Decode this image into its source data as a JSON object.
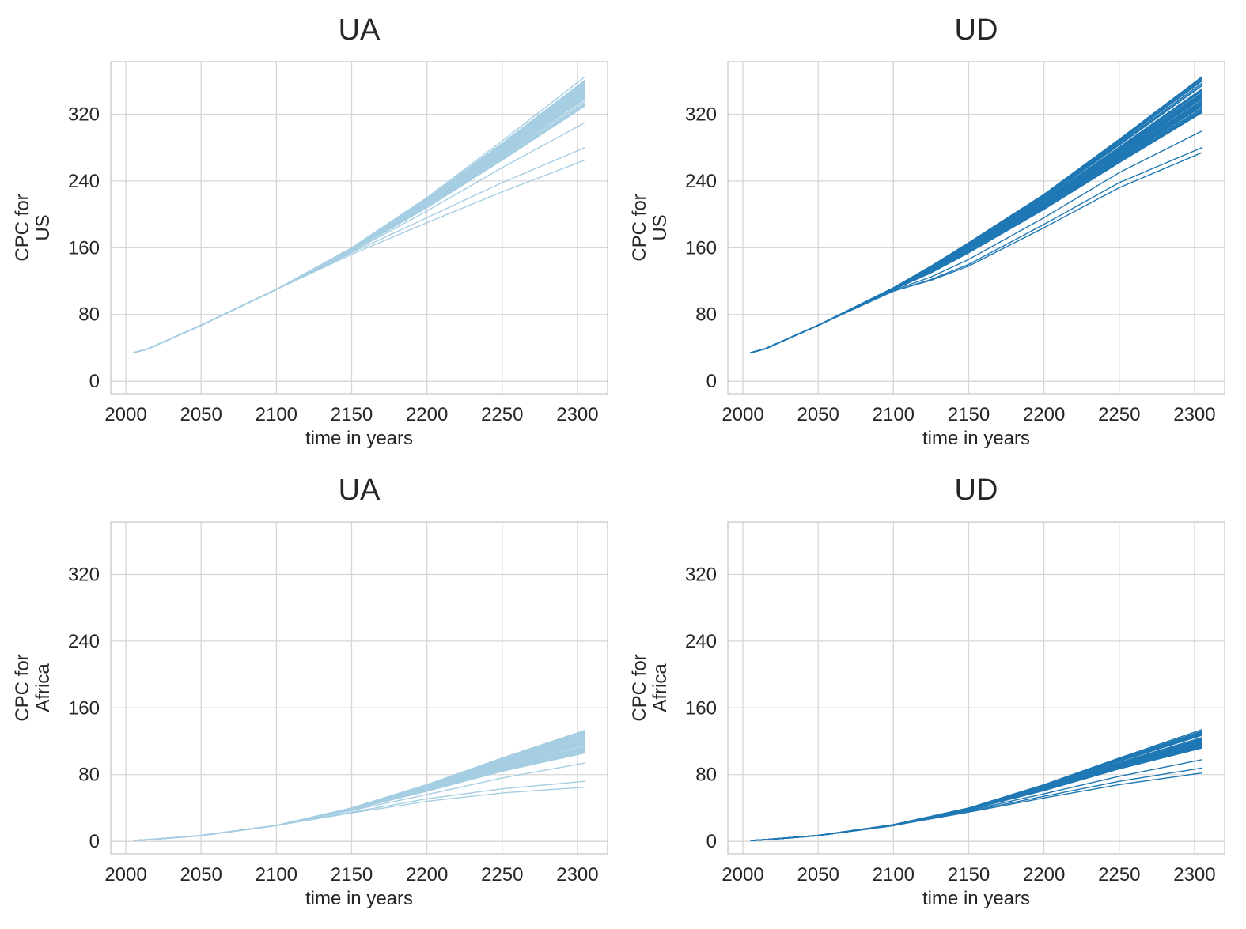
{
  "chart_data": [
    {
      "type": "line",
      "title": "UA",
      "xlabel": "time in years",
      "ylabel": [
        "CPC for",
        "US"
      ],
      "xlim": [
        1990,
        2320
      ],
      "ylim": [
        -15,
        383
      ],
      "xticks": [
        2000,
        2050,
        2100,
        2150,
        2200,
        2250,
        2300
      ],
      "yticks": [
        0,
        80,
        160,
        240,
        320
      ],
      "grid": true,
      "color": "#a6cee3",
      "series_count": 50,
      "x": [
        2005,
        2015,
        2050,
        2100,
        2150,
        2200,
        2250,
        2305
      ],
      "series": [
        {
          "values": [
            34,
            39,
            67,
            110,
            160,
            220,
            288,
            365
          ]
        },
        {
          "values": [
            34,
            39,
            67,
            110,
            158,
            214,
            276,
            346
          ]
        },
        {
          "values": [
            34,
            39,
            67,
            110,
            156,
            208,
            265,
            330
          ]
        },
        {
          "values": [
            34,
            39,
            67,
            110,
            155,
            204,
            256,
            310
          ]
        },
        {
          "values": [
            34,
            39,
            67,
            110,
            154,
            196,
            238,
            280
          ]
        },
        {
          "values": [
            34,
            39,
            67,
            110,
            152,
            190,
            227,
            265
          ]
        }
      ]
    },
    {
      "type": "line",
      "title": "UD",
      "xlabel": "time in years",
      "ylabel": [
        "CPC for",
        "US"
      ],
      "xlim": [
        1990,
        2320
      ],
      "ylim": [
        -15,
        383
      ],
      "xticks": [
        2000,
        2050,
        2100,
        2150,
        2200,
        2250,
        2300
      ],
      "yticks": [
        0,
        80,
        160,
        240,
        320
      ],
      "grid": true,
      "color": "#1f78b4",
      "series_count": 50,
      "x": [
        2005,
        2015,
        2050,
        2100,
        2125,
        2150,
        2200,
        2250,
        2305
      ],
      "series": [
        {
          "values": [
            34,
            39,
            67,
            112,
            138,
            166,
            224,
            290,
            365
          ]
        },
        {
          "values": [
            34,
            39,
            67,
            111,
            134,
            160,
            214,
            276,
            345
          ]
        },
        {
          "values": [
            34,
            39,
            67,
            110,
            130,
            154,
            206,
            262,
            322
          ]
        },
        {
          "values": [
            34,
            39,
            67,
            109,
            125,
            146,
            196,
            250,
            300
          ]
        },
        {
          "values": [
            34,
            39,
            67,
            108,
            122,
            140,
            188,
            238,
            280
          ]
        },
        {
          "values": [
            34,
            39,
            67,
            108,
            121,
            138,
            184,
            232,
            274
          ]
        }
      ]
    },
    {
      "type": "line",
      "title": "UA",
      "xlabel": "time in years",
      "ylabel": [
        "CPC for",
        "Africa"
      ],
      "xlim": [
        1990,
        2320
      ],
      "ylim": [
        -15,
        383
      ],
      "xticks": [
        2000,
        2050,
        2100,
        2150,
        2200,
        2250,
        2300
      ],
      "yticks": [
        0,
        80,
        160,
        240,
        320
      ],
      "grid": true,
      "color": "#a6cee3",
      "series_count": 50,
      "x": [
        2005,
        2015,
        2050,
        2100,
        2150,
        2200,
        2250,
        2305
      ],
      "series": [
        {
          "values": [
            1,
            2,
            7,
            19,
            40,
            68,
            100,
            133
          ]
        },
        {
          "values": [
            1,
            2,
            7,
            19,
            39,
            64,
            92,
            120
          ]
        },
        {
          "values": [
            1,
            2,
            7,
            19,
            38,
            60,
            84,
            106
          ]
        },
        {
          "values": [
            1,
            2,
            7,
            19,
            37,
            56,
            76,
            94
          ]
        },
        {
          "values": [
            1,
            2,
            7,
            19,
            35,
            51,
            63,
            72
          ]
        },
        {
          "values": [
            1,
            2,
            7,
            19,
            34,
            48,
            58,
            65
          ]
        }
      ]
    },
    {
      "type": "line",
      "title": "UD",
      "xlabel": "time in years",
      "ylabel": [
        "CPC for",
        "Africa"
      ],
      "xlim": [
        1990,
        2320
      ],
      "ylim": [
        -15,
        383
      ],
      "xticks": [
        2000,
        2050,
        2100,
        2150,
        2200,
        2250,
        2300
      ],
      "yticks": [
        0,
        80,
        160,
        240,
        320
      ],
      "grid": true,
      "color": "#1f78b4",
      "series_count": 50,
      "x": [
        2005,
        2015,
        2050,
        2100,
        2150,
        2200,
        2250,
        2305
      ],
      "series": [
        {
          "values": [
            1,
            2,
            7,
            20,
            40,
            68,
            100,
            134
          ]
        },
        {
          "values": [
            1,
            2,
            7,
            19,
            39,
            65,
            94,
            124
          ]
        },
        {
          "values": [
            1,
            2,
            7,
            19,
            38,
            61,
            87,
            112
          ]
        },
        {
          "values": [
            1,
            2,
            7,
            19,
            37,
            57,
            78,
            98
          ]
        },
        {
          "values": [
            1,
            2,
            7,
            19,
            36,
            54,
            72,
            88
          ]
        },
        {
          "values": [
            1,
            2,
            7,
            19,
            35,
            52,
            68,
            82
          ]
        }
      ]
    }
  ]
}
